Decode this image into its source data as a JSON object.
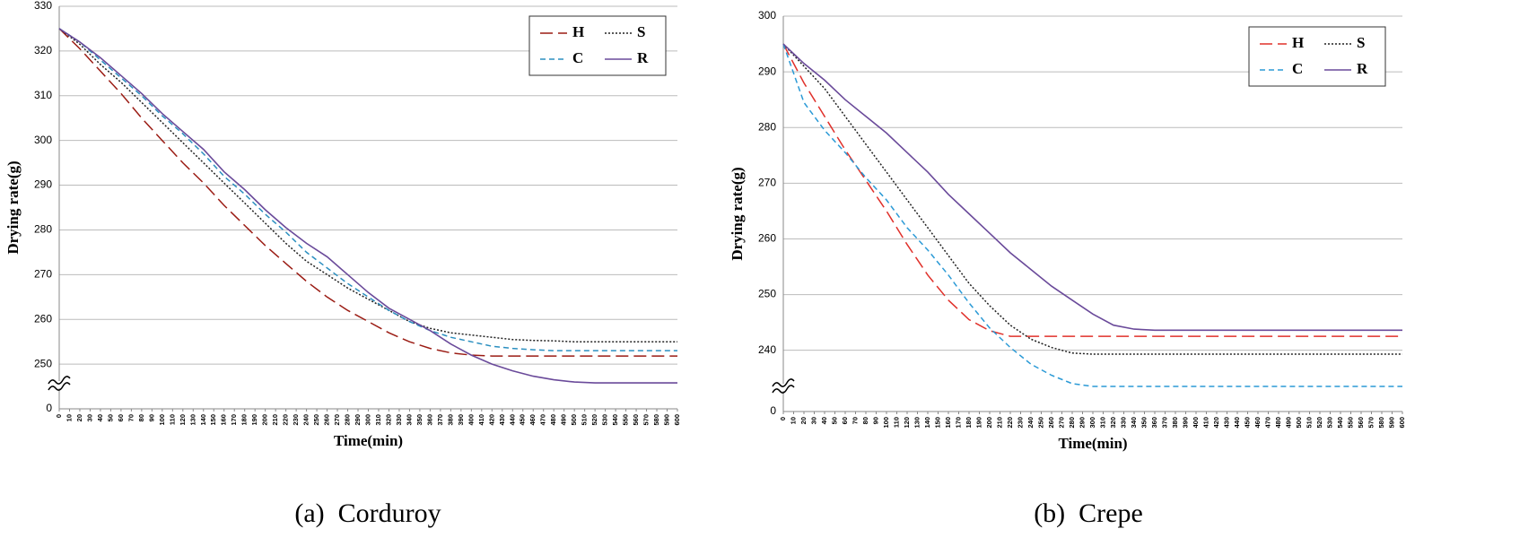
{
  "chart_data": [
    {
      "type": "line",
      "caption": "(a)  Corduroy",
      "x_label": "Time(min)",
      "y_label": "Drying rate(g)",
      "x": [
        0,
        20,
        40,
        60,
        80,
        100,
        120,
        140,
        160,
        180,
        200,
        220,
        240,
        260,
        280,
        300,
        320,
        340,
        360,
        380,
        400,
        420,
        440,
        460,
        480,
        500,
        520,
        540,
        560,
        580,
        600
      ],
      "xlim": [
        0,
        600
      ],
      "xticks": [
        0,
        10,
        20,
        30,
        40,
        50,
        60,
        70,
        80,
        90,
        100,
        110,
        120,
        130,
        140,
        150,
        160,
        170,
        180,
        190,
        200,
        210,
        220,
        230,
        240,
        250,
        260,
        270,
        280,
        290,
        300,
        310,
        320,
        330,
        340,
        350,
        360,
        370,
        380,
        390,
        400,
        410,
        420,
        430,
        440,
        450,
        460,
        470,
        480,
        490,
        500,
        510,
        520,
        530,
        540,
        550,
        560,
        570,
        580,
        590,
        600
      ],
      "ylim": [
        0,
        330
      ],
      "y_break": [
        0,
        240
      ],
      "yticks": [
        0,
        250,
        260,
        270,
        280,
        290,
        300,
        310,
        320,
        330
      ],
      "grid": true,
      "legend": "upper right",
      "series": [
        {
          "name": "H",
          "color": "#9b1c14",
          "style": "long-dash",
          "values": [
            325,
            320.5,
            315.5,
            310.5,
            305,
            300,
            295,
            290.5,
            285.5,
            281,
            276.5,
            272.5,
            268.5,
            265,
            262,
            259.5,
            257,
            255,
            253.5,
            252.5,
            252,
            251.8,
            251.8,
            251.8,
            251.8,
            251.8,
            251.8,
            251.8,
            251.8,
            251.8,
            251.8
          ]
        },
        {
          "name": "S",
          "color": "#222222",
          "style": "dotted",
          "values": [
            325,
            321.5,
            317,
            313,
            308.5,
            304,
            299.5,
            295,
            290.5,
            286,
            281.5,
            277,
            273,
            270,
            267,
            264.5,
            262,
            259.5,
            258,
            257,
            256.5,
            256,
            255.5,
            255.3,
            255.2,
            255,
            255,
            255,
            255,
            255,
            255
          ]
        },
        {
          "name": "C",
          "color": "#2b8fc0",
          "style": "dashed",
          "values": [
            325,
            322,
            318,
            314,
            310,
            305.5,
            301.5,
            297,
            292,
            288,
            283.5,
            279.5,
            275,
            271.5,
            268,
            265,
            262,
            259.5,
            257.5,
            256,
            255,
            254,
            253.5,
            253.2,
            253,
            253,
            253,
            253,
            253,
            253,
            253
          ]
        },
        {
          "name": "R",
          "color": "#6a4a9a",
          "style": "solid",
          "values": [
            325,
            322,
            318.5,
            314.5,
            310.5,
            306,
            302,
            298,
            293,
            289,
            284.5,
            280.5,
            277,
            274,
            270,
            266,
            262.5,
            260,
            257.5,
            254.5,
            252,
            250,
            248.5,
            247.3,
            246.5,
            246,
            245.8,
            245.8,
            245.8,
            245.8,
            245.8
          ]
        }
      ]
    },
    {
      "type": "line",
      "caption": "(b)  Crepe",
      "x_label": "Time(min)",
      "y_label": "Drying rate(g)",
      "x": [
        0,
        20,
        40,
        60,
        80,
        100,
        120,
        140,
        160,
        180,
        200,
        220,
        240,
        260,
        280,
        300,
        320,
        340,
        360,
        380,
        400,
        420,
        440,
        460,
        480,
        500,
        520,
        540,
        560,
        580,
        600
      ],
      "xlim": [
        0,
        600
      ],
      "xticks": [
        0,
        10,
        20,
        30,
        40,
        50,
        60,
        70,
        80,
        90,
        100,
        110,
        120,
        130,
        140,
        150,
        160,
        170,
        180,
        190,
        200,
        210,
        220,
        230,
        240,
        250,
        260,
        270,
        280,
        290,
        300,
        310,
        320,
        330,
        340,
        350,
        360,
        370,
        380,
        390,
        400,
        410,
        420,
        430,
        440,
        450,
        460,
        470,
        480,
        490,
        500,
        510,
        520,
        530,
        540,
        550,
        560,
        570,
        580,
        590,
        600
      ],
      "ylim": [
        0,
        300
      ],
      "y_break": [
        0,
        229
      ],
      "yticks": [
        0,
        240,
        250,
        260,
        270,
        280,
        290,
        300
      ],
      "grid": true,
      "legend": "upper right",
      "series": [
        {
          "name": "H",
          "color": "#e0302a",
          "style": "long-dash",
          "values": [
            295,
            288,
            282,
            276,
            270.5,
            265,
            259,
            253.5,
            249,
            245.5,
            243.5,
            242.5,
            242.5,
            242.5,
            242.5,
            242.5,
            242.5,
            242.5,
            242.5,
            242.5,
            242.5,
            242.5,
            242.5,
            242.5,
            242.5,
            242.5,
            242.5,
            242.5,
            242.5,
            242.5,
            242.5
          ]
        },
        {
          "name": "S",
          "color": "#222222",
          "style": "dotted",
          "values": [
            295,
            291,
            287,
            282,
            277,
            272,
            267,
            262,
            257,
            252,
            248,
            244.5,
            242,
            240.5,
            239.5,
            239.3,
            239.3,
            239.3,
            239.3,
            239.3,
            239.3,
            239.3,
            239.3,
            239.3,
            239.3,
            239.3,
            239.3,
            239.3,
            239.3,
            239.3,
            239.3
          ]
        },
        {
          "name": "C",
          "color": "#2b9ad6",
          "style": "dashed",
          "values": [
            295,
            284.5,
            279.5,
            275.5,
            271,
            267,
            262,
            258,
            253.5,
            248.5,
            244,
            240.5,
            237.5,
            235.5,
            234,
            233.5,
            233.5,
            233.5,
            233.5,
            233.5,
            233.5,
            233.5,
            233.5,
            233.5,
            233.5,
            233.5,
            233.5,
            233.5,
            233.5,
            233.5,
            233.5
          ]
        },
        {
          "name": "R",
          "color": "#6a4a9a",
          "style": "solid",
          "values": [
            295,
            291.5,
            288.5,
            285,
            282,
            279,
            275.5,
            272,
            268,
            264.5,
            261,
            257.5,
            254.5,
            251.5,
            249,
            246.5,
            244.5,
            243.8,
            243.6,
            243.6,
            243.6,
            243.6,
            243.6,
            243.6,
            243.6,
            243.6,
            243.6,
            243.6,
            243.6,
            243.6,
            243.6
          ]
        }
      ]
    }
  ]
}
